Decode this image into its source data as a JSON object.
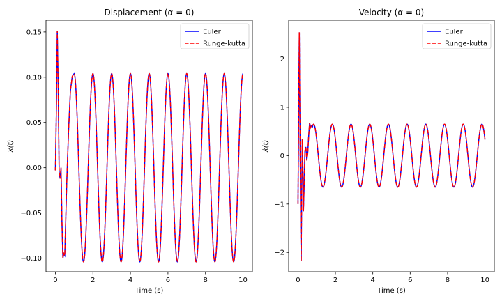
{
  "chart_data": [
    {
      "type": "line",
      "title": "Displacement (α =  0)",
      "xlabel": "Time (s)",
      "ylabel": "x(t)",
      "xlim": [
        -0.5,
        10.5
      ],
      "ylim": [
        -0.115,
        0.163
      ],
      "xticks": [
        "0",
        "2",
        "4",
        "6",
        "8",
        "10"
      ],
      "yticks": [
        "0.15",
        "0.10",
        "0.05",
        "0.00",
        "-0.05",
        "-0.10"
      ],
      "grid": false,
      "legend_position": "top-right",
      "series": [
        {
          "name": "Euler",
          "color": "#0000ff",
          "style": "solid",
          "amplitude": 0.104,
          "period": 1.0,
          "peak": 0.151,
          "trough": -0.104
        },
        {
          "name": "Runge-kutta",
          "color": "#ff0000",
          "style": "dashed",
          "amplitude": 0.104,
          "period": 1.0,
          "peak": 0.151,
          "trough": -0.104
        }
      ],
      "points": [
        [
          0,
          -0.003
        ],
        [
          0.05,
          0.06
        ],
        [
          0.1,
          0.151
        ],
        [
          0.15,
          0.09
        ],
        [
          0.2,
          -0.005
        ],
        [
          0.25,
          -0.012
        ],
        [
          0.3,
          0.0
        ],
        [
          0.35,
          -0.06
        ],
        [
          0.4,
          -0.1
        ],
        [
          0.45,
          -0.095
        ],
        [
          0.5,
          -0.097
        ],
        [
          0.55,
          -0.06
        ],
        [
          0.6,
          -0.02
        ],
        [
          0.7,
          0.04
        ],
        [
          0.8,
          0.085
        ],
        [
          0.9,
          0.101
        ],
        [
          1.0,
          0.104
        ]
      ]
    },
    {
      "type": "line",
      "title": "Velocity (α =  0)",
      "xlabel": "Time (s)",
      "ylabel": "ẋ(t)",
      "xlim": [
        -0.5,
        10.5
      ],
      "ylim": [
        -2.4,
        2.8
      ],
      "xticks": [
        "0",
        "2",
        "4",
        "6",
        "8",
        "10"
      ],
      "yticks": [
        "2",
        "1",
        "0",
        "-1",
        "-2"
      ],
      "grid": false,
      "legend_position": "top-right",
      "series": [
        {
          "name": "Euler",
          "color": "#0000ff",
          "style": "solid",
          "amplitude": 0.65,
          "period": 1.0,
          "peak": 2.55,
          "trough": -2.18
        },
        {
          "name": "Runge-kutta",
          "color": "#ff0000",
          "style": "dashed",
          "amplitude": 0.65,
          "period": 1.0,
          "peak": 2.55,
          "trough": -2.18
        }
      ],
      "points": [
        [
          0,
          -1.0
        ],
        [
          0.04,
          1.2
        ],
        [
          0.07,
          2.55
        ],
        [
          0.11,
          0.3
        ],
        [
          0.15,
          -1.5
        ],
        [
          0.17,
          -2.18
        ],
        [
          0.2,
          -0.8
        ],
        [
          0.23,
          0.35
        ],
        [
          0.26,
          -0.2
        ],
        [
          0.29,
          -1.15
        ],
        [
          0.33,
          -0.6
        ],
        [
          0.37,
          0.1
        ],
        [
          0.42,
          0.18
        ],
        [
          0.47,
          -0.1
        ],
        [
          0.52,
          0.05
        ],
        [
          0.57,
          0.4
        ],
        [
          0.62,
          0.68
        ],
        [
          0.67,
          0.58
        ],
        [
          0.72,
          0.62
        ],
        [
          0.78,
          0.6
        ]
      ]
    }
  ]
}
